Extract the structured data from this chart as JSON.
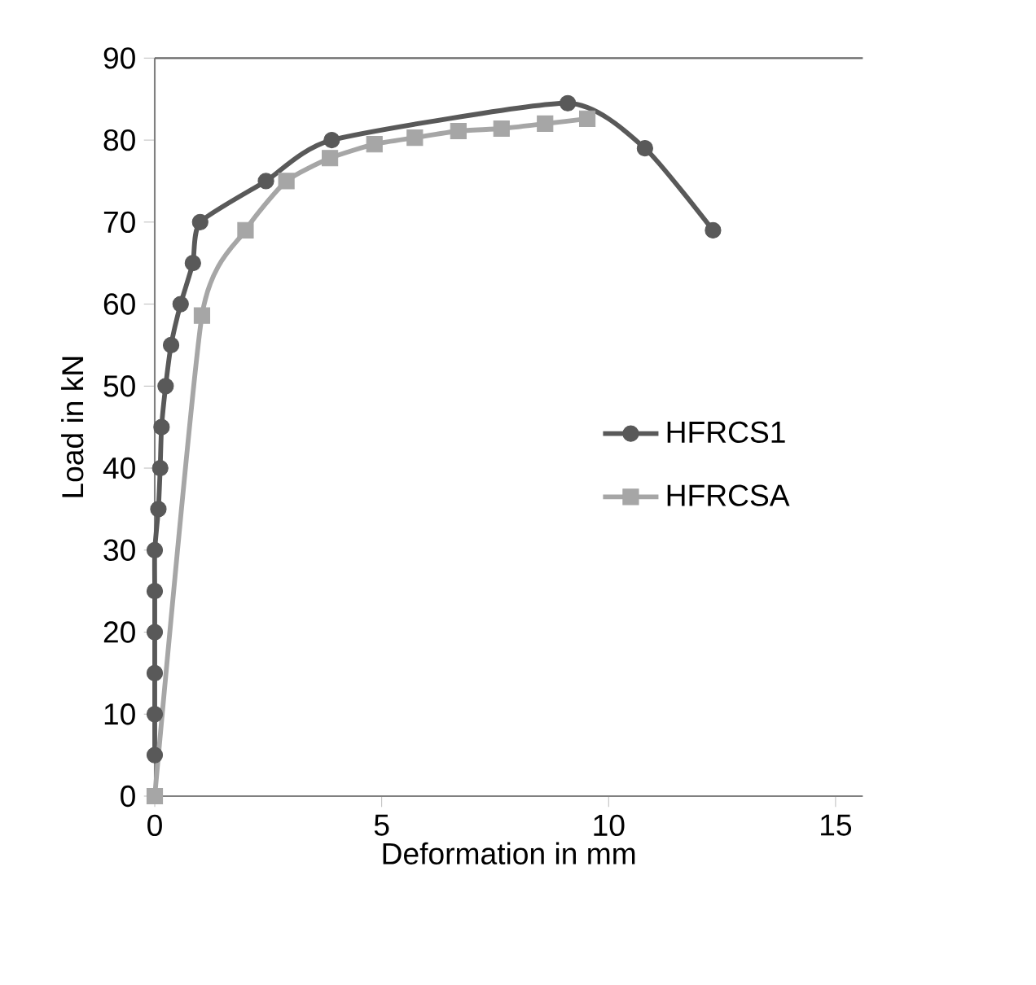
{
  "chart_data": {
    "type": "line",
    "xlabel": "Deformation in mm",
    "ylabel": "Load in kN",
    "xlim": [
      0,
      15.6
    ],
    "xticks": [
      0,
      5,
      10,
      15
    ],
    "ylim": [
      0,
      90
    ],
    "yticks": [
      0,
      10,
      20,
      30,
      40,
      50,
      60,
      70,
      80,
      90
    ],
    "legend": "right",
    "grid": false,
    "series": [
      {
        "name": "HFRCS1",
        "color": "#595959",
        "marker": "circle",
        "x": [
          0,
          0,
          0,
          0,
          0,
          0,
          0.08,
          0.12,
          0.15,
          0.24,
          0.36,
          0.57,
          0.84,
          1.0,
          2.45,
          3.9,
          9.1,
          10.8,
          12.3
        ],
        "values": [
          5,
          10,
          15,
          20,
          25,
          30,
          35,
          40,
          45,
          50,
          55,
          60,
          65,
          70,
          75,
          80,
          84.5,
          79,
          69
        ]
      },
      {
        "name": "HFRCSA",
        "color": "#a6a6a6",
        "marker": "square",
        "x": [
          0,
          1.04,
          2.0,
          2.9,
          3.86,
          4.84,
          5.73,
          6.69,
          7.64,
          8.6,
          9.53
        ],
        "values": [
          0,
          58.6,
          69,
          75,
          77.8,
          79.5,
          80.3,
          81.1,
          81.4,
          82,
          82.6
        ]
      }
    ]
  }
}
